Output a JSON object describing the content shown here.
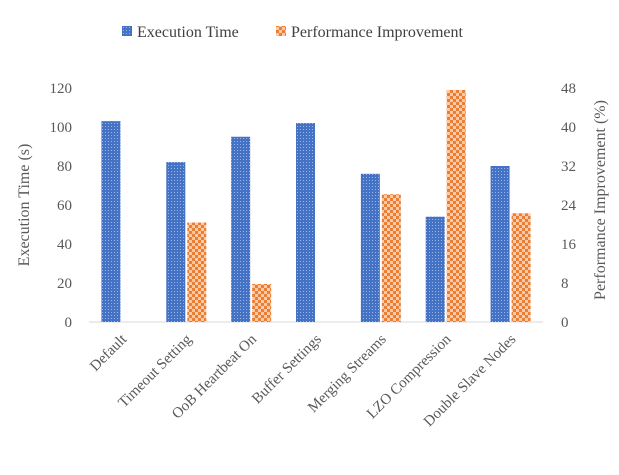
{
  "chart_data": {
    "type": "bar",
    "title": "",
    "categories": [
      "Default",
      "Timeout Setting",
      "OoB Heartbeat On",
      "Buffer Settings",
      "Merging Streams",
      "LZO Compression",
      "Double Slave Nodes"
    ],
    "series": [
      {
        "name": "Execution Time",
        "axis": "left",
        "color": "#4472c4",
        "pattern": "dotted",
        "values": [
          103,
          82,
          95,
          102,
          76,
          54,
          80
        ]
      },
      {
        "name": "Performance Improvement",
        "axis": "right",
        "color": "#ed7d31",
        "pattern": "checkered",
        "values": [
          null,
          20.4,
          7.8,
          null,
          26.2,
          47.6,
          22.3
        ]
      }
    ],
    "ylabel": "Execution Time (s)",
    "ylim": [
      0,
      120
    ],
    "yticks": [
      "0",
      "20",
      "40",
      "60",
      "80",
      "100",
      "120"
    ],
    "y2label": "Performance Improvement (%)",
    "y2lim": [
      0,
      48
    ],
    "y2ticks": [
      "0",
      "8",
      "16",
      "24",
      "32",
      "40",
      "48"
    ],
    "legend_position": "top",
    "grid": false
  }
}
